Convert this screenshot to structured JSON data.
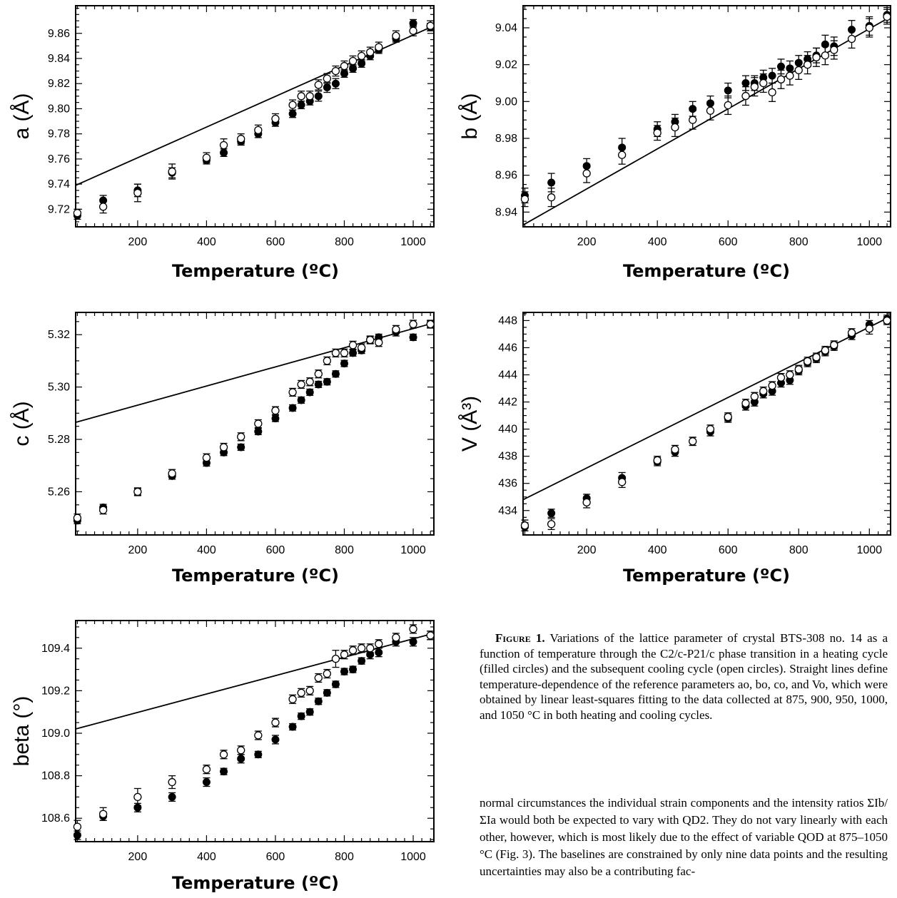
{
  "caption": {
    "label": "Figure 1.",
    "text": "Variations of the lattice parameter of crystal BTS-308 no. 14 as a function of temperature through the C2/c-P21/c phase transition in a heating cycle (filled circles) and the subsequent cooling cycle (open circles). Straight lines define temperature-dependence of the reference parameters ao, bo, co, and Vo, which were obtained by linear least-squares fitting to the data collected at 875, 900, 950, 1000, and 1050 °C in both heating and cooling cycles."
  },
  "body_text": "normal circumstances the individual strain components and the intensity ratios ΣIb/ΣIa would both be expected to vary with QD2. They do not vary linearly with each other, however, which is most likely due to the effect of variable QOD at 875–1050 °C (Fig. 3). The baselines are constrained by only nine data points and the resulting uncertainties may also be a contributing fac-",
  "chart_data": [
    {
      "type": "scatter",
      "xlabel": "Temperature (ºC)",
      "ylabel": "a (Å)",
      "xlim": [
        20,
        1060
      ],
      "ylim": [
        9.706,
        9.882
      ],
      "xticks": [
        200,
        400,
        600,
        800,
        1000
      ],
      "yticks": [
        9.72,
        9.74,
        9.76,
        9.78,
        9.8,
        9.82,
        9.84,
        9.86
      ],
      "ytick_labels": [
        "9.72",
        "9.74",
        "9.76",
        "9.78",
        "9.80",
        "9.82",
        "9.84",
        "9.86"
      ],
      "fit_line": [
        [
          20,
          9.739
        ],
        [
          1060,
          9.866
        ]
      ],
      "series": [
        {
          "marker": "filled",
          "x": [
            25,
            100,
            200,
            300,
            400,
            450,
            500,
            550,
            600,
            650,
            675,
            700,
            725,
            750,
            775,
            800,
            825,
            850,
            875,
            900,
            950,
            1000,
            1050
          ],
          "y": [
            9.715,
            9.727,
            9.735,
            9.749,
            9.759,
            9.765,
            9.774,
            9.78,
            9.789,
            9.796,
            9.803,
            9.806,
            9.81,
            9.817,
            9.82,
            9.828,
            9.832,
            9.836,
            9.842,
            9.847,
            9.856,
            9.868,
            9.865
          ],
          "err": [
            0.003,
            0.004,
            0.005,
            0.004,
            0.003,
            0.003,
            0.003,
            0.003,
            0.003,
            0.003,
            0.003,
            0.003,
            0.004,
            0.004,
            0.004,
            0.003,
            0.003,
            0.003,
            0.003,
            0.003,
            0.003,
            0.003,
            0.003
          ]
        },
        {
          "marker": "open",
          "x": [
            25,
            100,
            200,
            300,
            400,
            450,
            500,
            550,
            600,
            650,
            675,
            700,
            725,
            750,
            775,
            800,
            825,
            850,
            875,
            900,
            950,
            1000,
            1050
          ],
          "y": [
            9.717,
            9.722,
            9.733,
            9.75,
            9.761,
            9.771,
            9.776,
            9.783,
            9.792,
            9.803,
            9.81,
            9.81,
            9.819,
            9.824,
            9.83,
            9.834,
            9.838,
            9.842,
            9.845,
            9.849,
            9.858,
            9.862,
            9.866
          ],
          "err": [
            0.003,
            0.005,
            0.007,
            0.006,
            0.004,
            0.005,
            0.004,
            0.004,
            0.004,
            0.004,
            0.004,
            0.004,
            0.004,
            0.004,
            0.004,
            0.004,
            0.004,
            0.004,
            0.004,
            0.004,
            0.004,
            0.004,
            0.004
          ]
        }
      ]
    },
    {
      "type": "scatter",
      "xlabel": "Temperature (ºC)",
      "ylabel": "b (Å)",
      "xlim": [
        20,
        1060
      ],
      "ylim": [
        8.932,
        9.052
      ],
      "xticks": [
        200,
        400,
        600,
        800,
        1000
      ],
      "yticks": [
        8.94,
        8.96,
        8.98,
        9.0,
        9.02,
        9.04
      ],
      "ytick_labels": [
        "8.94",
        "8.96",
        "8.98",
        "9.00",
        "9.02",
        "9.04"
      ],
      "fit_line": [
        [
          20,
          8.933
        ],
        [
          1060,
          9.046
        ]
      ],
      "series": [
        {
          "marker": "filled",
          "x": [
            25,
            100,
            200,
            300,
            400,
            450,
            500,
            550,
            600,
            650,
            675,
            700,
            725,
            750,
            775,
            800,
            825,
            850,
            875,
            900,
            950,
            1000,
            1050
          ],
          "y": [
            8.949,
            8.956,
            8.965,
            8.975,
            8.985,
            8.989,
            8.996,
            8.999,
            9.006,
            9.01,
            9.01,
            9.013,
            9.014,
            9.019,
            9.018,
            9.021,
            9.023,
            9.025,
            9.031,
            9.03,
            9.039,
            9.041,
            9.047
          ],
          "err": [
            0.004,
            0.005,
            0.004,
            0.005,
            0.004,
            0.004,
            0.004,
            0.004,
            0.004,
            0.004,
            0.004,
            0.004,
            0.004,
            0.004,
            0.004,
            0.004,
            0.004,
            0.004,
            0.005,
            0.005,
            0.005,
            0.005,
            0.004
          ]
        },
        {
          "marker": "open",
          "x": [
            25,
            100,
            200,
            300,
            400,
            450,
            500,
            550,
            600,
            650,
            675,
            700,
            725,
            750,
            775,
            800,
            825,
            850,
            875,
            900,
            950,
            1000,
            1050
          ],
          "y": [
            8.947,
            8.948,
            8.961,
            8.971,
            8.983,
            8.986,
            8.99,
            8.995,
            8.998,
            9.003,
            9.008,
            9.01,
            9.005,
            9.012,
            9.014,
            9.017,
            9.02,
            9.024,
            9.025,
            9.028,
            9.034,
            9.04,
            9.046
          ],
          "err": [
            0.004,
            0.005,
            0.005,
            0.005,
            0.004,
            0.005,
            0.005,
            0.005,
            0.005,
            0.005,
            0.005,
            0.005,
            0.005,
            0.005,
            0.005,
            0.005,
            0.005,
            0.005,
            0.005,
            0.005,
            0.005,
            0.005,
            0.004
          ]
        }
      ]
    },
    {
      "type": "scatter",
      "xlabel": "Temperature (ºC)",
      "ylabel": "c (Å)",
      "xlim": [
        20,
        1060
      ],
      "ylim": [
        5.2435,
        5.3285
      ],
      "xticks": [
        200,
        400,
        600,
        800,
        1000
      ],
      "yticks": [
        5.26,
        5.28,
        5.3,
        5.32
      ],
      "ytick_labels": [
        "5.26",
        "5.28",
        "5.30",
        "5.32"
      ],
      "fit_line": [
        [
          20,
          5.2865
        ],
        [
          1060,
          5.3245
        ]
      ],
      "series": [
        {
          "marker": "filled",
          "x": [
            25,
            100,
            200,
            300,
            400,
            450,
            500,
            550,
            600,
            650,
            675,
            700,
            725,
            750,
            775,
            800,
            825,
            850,
            875,
            900,
            950,
            1000,
            1050
          ],
          "y": [
            5.249,
            5.254,
            5.26,
            5.266,
            5.271,
            5.275,
            5.277,
            5.283,
            5.288,
            5.292,
            5.295,
            5.298,
            5.301,
            5.302,
            5.305,
            5.309,
            5.313,
            5.314,
            5.318,
            5.319,
            5.321,
            5.319,
            5.324
          ],
          "err": [
            0.0012,
            0.0012,
            0.0012,
            0.0012,
            0.0012,
            0.0012,
            0.0012,
            0.0012,
            0.0012,
            0.0012,
            0.0012,
            0.0012,
            0.0012,
            0.0012,
            0.0012,
            0.0012,
            0.0012,
            0.0012,
            0.0012,
            0.0012,
            0.0015,
            0.0012,
            0.0012
          ]
        },
        {
          "marker": "open",
          "x": [
            25,
            100,
            200,
            300,
            400,
            450,
            500,
            550,
            600,
            650,
            675,
            700,
            725,
            750,
            775,
            800,
            825,
            850,
            875,
            900,
            950,
            1000,
            1050
          ],
          "y": [
            5.25,
            5.253,
            5.26,
            5.267,
            5.273,
            5.277,
            5.281,
            5.286,
            5.291,
            5.298,
            5.301,
            5.302,
            5.305,
            5.31,
            5.313,
            5.313,
            5.316,
            5.315,
            5.318,
            5.317,
            5.322,
            5.324,
            5.324
          ],
          "err": [
            0.0015,
            0.0015,
            0.0015,
            0.0015,
            0.0015,
            0.0015,
            0.0015,
            0.0015,
            0.0015,
            0.0015,
            0.0015,
            0.0015,
            0.0015,
            0.0015,
            0.0015,
            0.0015,
            0.0015,
            0.0015,
            0.0015,
            0.0015,
            0.0015,
            0.0015,
            0.0015
          ]
        }
      ]
    },
    {
      "type": "scatter",
      "xlabel": "Temperature (ºC)",
      "ylabel": "V (Å³)",
      "xlim": [
        20,
        1060
      ],
      "ylim": [
        432.2,
        448.6
      ],
      "xticks": [
        200,
        400,
        600,
        800,
        1000
      ],
      "yticks": [
        434,
        436,
        438,
        440,
        442,
        444,
        446,
        448
      ],
      "ytick_labels": [
        "434",
        "436",
        "438",
        "440",
        "442",
        "444",
        "446",
        "448"
      ],
      "fit_line": [
        [
          20,
          434.8
        ],
        [
          1060,
          448.3
        ]
      ],
      "series": [
        {
          "marker": "filled",
          "x": [
            25,
            100,
            200,
            300,
            400,
            450,
            500,
            550,
            600,
            650,
            675,
            700,
            725,
            750,
            775,
            800,
            825,
            850,
            875,
            900,
            950,
            1000,
            1050
          ],
          "y": [
            432.8,
            433.8,
            434.9,
            436.4,
            437.6,
            438.3,
            439.1,
            439.8,
            440.8,
            441.7,
            442.0,
            442.6,
            442.8,
            443.4,
            443.6,
            444.3,
            444.9,
            445.2,
            445.7,
            446.1,
            446.9,
            447.7,
            448.1
          ],
          "err": [
            0.3,
            0.3,
            0.3,
            0.4,
            0.3,
            0.3,
            0.3,
            0.3,
            0.3,
            0.3,
            0.3,
            0.3,
            0.3,
            0.3,
            0.3,
            0.3,
            0.3,
            0.3,
            0.3,
            0.3,
            0.3,
            0.3,
            0.3
          ]
        },
        {
          "marker": "open",
          "x": [
            25,
            100,
            200,
            300,
            400,
            450,
            500,
            550,
            600,
            650,
            675,
            700,
            725,
            750,
            775,
            800,
            825,
            850,
            875,
            900,
            950,
            1000,
            1050
          ],
          "y": [
            432.9,
            433.0,
            434.6,
            436.1,
            437.7,
            438.5,
            439.1,
            440.0,
            440.9,
            441.9,
            442.4,
            442.8,
            443.2,
            443.8,
            444.0,
            444.4,
            445.0,
            445.3,
            445.8,
            446.2,
            447.1,
            447.4,
            448.0
          ],
          "err": [
            0.4,
            0.4,
            0.4,
            0.4,
            0.3,
            0.3,
            0.3,
            0.3,
            0.3,
            0.3,
            0.3,
            0.3,
            0.3,
            0.3,
            0.3,
            0.3,
            0.3,
            0.3,
            0.3,
            0.3,
            0.3,
            0.4,
            0.3
          ]
        }
      ]
    },
    {
      "type": "scatter",
      "xlabel": "Temperature (ºC)",
      "ylabel": "beta (°)",
      "xlim": [
        20,
        1060
      ],
      "ylim": [
        108.49,
        109.53
      ],
      "xticks": [
        200,
        400,
        600,
        800,
        1000
      ],
      "yticks": [
        108.6,
        108.8,
        109.0,
        109.2,
        109.4
      ],
      "ytick_labels": [
        "108.6",
        "108.8",
        "109.0",
        "109.2",
        "109.4"
      ],
      "fit_line": [
        [
          20,
          109.02
        ],
        [
          1060,
          109.47
        ]
      ],
      "series": [
        {
          "marker": "filled",
          "x": [
            25,
            100,
            200,
            300,
            400,
            450,
            500,
            550,
            600,
            650,
            675,
            700,
            725,
            750,
            775,
            800,
            825,
            850,
            875,
            900,
            950,
            1000,
            1050
          ],
          "y": [
            108.52,
            108.61,
            108.65,
            108.7,
            108.77,
            108.82,
            108.88,
            108.9,
            108.97,
            109.03,
            109.08,
            109.1,
            109.15,
            109.19,
            109.23,
            109.29,
            109.3,
            109.34,
            109.37,
            109.38,
            109.43,
            109.43,
            109.46
          ],
          "err": [
            0.02,
            0.02,
            0.02,
            0.02,
            0.02,
            0.015,
            0.02,
            0.015,
            0.02,
            0.015,
            0.015,
            0.015,
            0.015,
            0.015,
            0.015,
            0.015,
            0.015,
            0.015,
            0.02,
            0.02,
            0.02,
            0.02,
            0.02
          ]
        },
        {
          "marker": "open",
          "x": [
            25,
            100,
            200,
            300,
            400,
            450,
            500,
            550,
            600,
            650,
            675,
            700,
            725,
            750,
            775,
            800,
            825,
            850,
            875,
            900,
            950,
            1000,
            1050
          ],
          "y": [
            108.56,
            108.62,
            108.7,
            108.77,
            108.83,
            108.9,
            108.92,
            108.99,
            109.05,
            109.16,
            109.19,
            109.2,
            109.26,
            109.28,
            109.35,
            109.37,
            109.39,
            109.4,
            109.4,
            109.42,
            109.45,
            109.49,
            109.46
          ],
          "err": [
            0.03,
            0.03,
            0.04,
            0.03,
            0.02,
            0.02,
            0.02,
            0.02,
            0.02,
            0.02,
            0.02,
            0.02,
            0.02,
            0.02,
            0.04,
            0.02,
            0.02,
            0.02,
            0.02,
            0.02,
            0.02,
            0.02,
            0.02
          ]
        }
      ]
    }
  ]
}
